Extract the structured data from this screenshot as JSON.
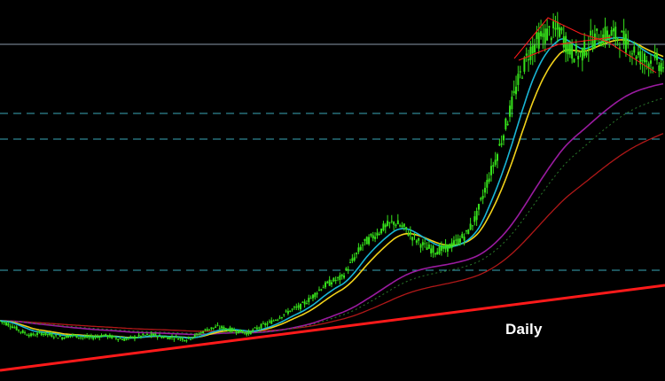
{
  "timeframe_label": "Daily",
  "colors": {
    "background": "#000000",
    "candle": "#36e21b",
    "ema_fast": "#19b6d6",
    "ema_mid": "#f2d21a",
    "ma_slow": "#9a1ba0",
    "ma_long": "#b01818",
    "trendline": "#ff1a1a",
    "resistance_line": "#8a9aaa",
    "level_lines": "#3aa8b8"
  },
  "chart_data": {
    "type": "line",
    "series": [
      {
        "values": [
          52,
          50,
          47,
          45,
          46,
          45,
          44,
          45,
          44,
          44,
          45,
          44,
          43,
          44,
          45,
          45,
          44,
          44,
          43,
          45,
          48,
          49,
          48,
          47,
          46,
          49,
          51,
          54,
          57,
          59,
          63,
          68,
          71,
          73,
          81,
          89,
          93,
          97,
          100,
          97,
          92,
          88,
          86,
          87,
          90,
          94,
          103,
          119,
          133,
          150,
          168,
          182,
          189,
          192,
          193,
          183,
          181,
          188,
          190,
          191,
          189,
          184,
          179,
          178,
          176
        ]
      }
    ]
  }
}
